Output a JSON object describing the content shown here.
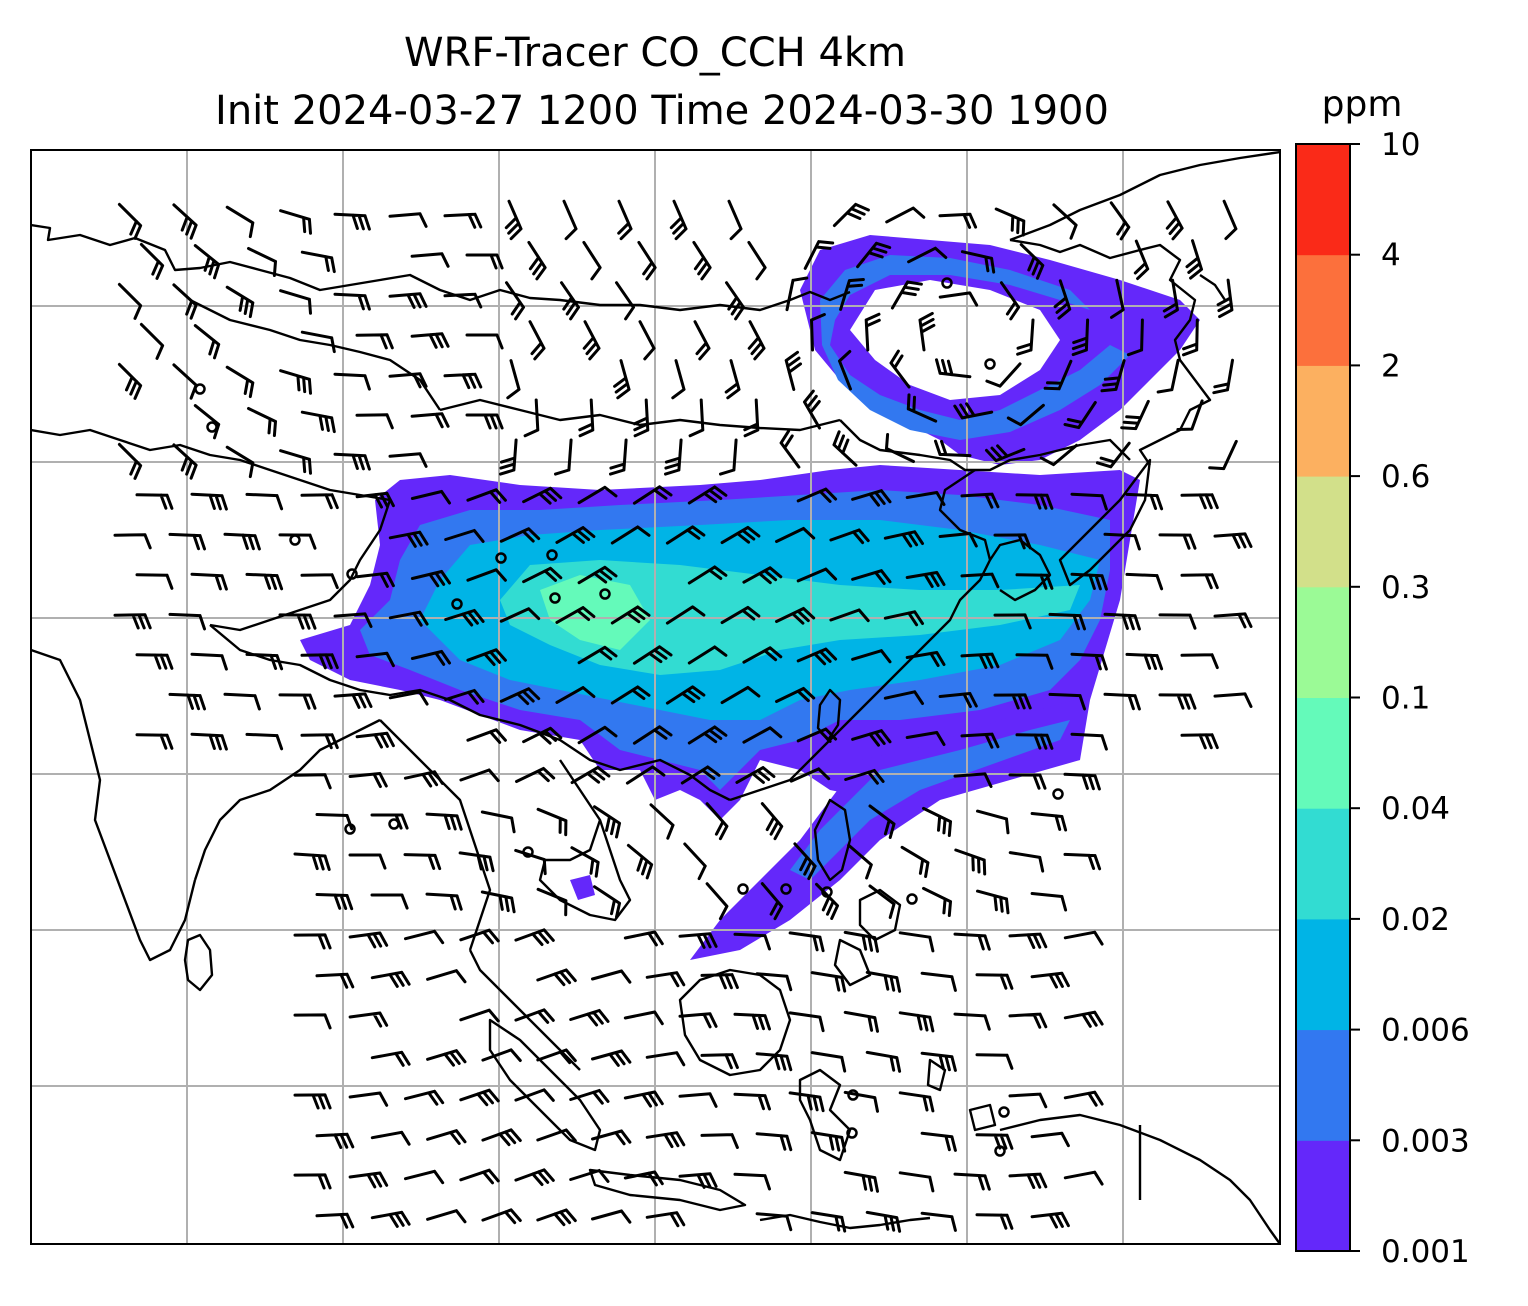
{
  "figure": {
    "title_line1": "WRF-Tracer CO_CCH 4km",
    "title_line2": "Init 2024-03-27 1200 Time 2024-03-30 1900"
  },
  "colorbar": {
    "unit": "ppm",
    "levels": [
      "0.001",
      "0.003",
      "0.006",
      "0.02",
      "0.04",
      "0.1",
      "0.3",
      "0.6",
      "2",
      "4",
      "10"
    ],
    "colors": [
      "#6428fa",
      "#3278f0",
      "#00b4e6",
      "#32dcd2",
      "#64faba",
      "#9bfa96",
      "#d2e08a",
      "#fcb060",
      "#fc703c",
      "#fa2a18"
    ]
  },
  "colors": {
    "plume_outer": "#6428fa",
    "plume_mid": "#3278f0",
    "plume_core": "#00b4e6",
    "plume_peak": "#32dcd2",
    "plume_max": "#64faba",
    "gridline": "#b0b0b0",
    "coastline": "#000000"
  },
  "map": {
    "overlays": [
      "wind-barbs",
      "coastlines",
      "gridlines",
      "station-markers"
    ]
  }
}
